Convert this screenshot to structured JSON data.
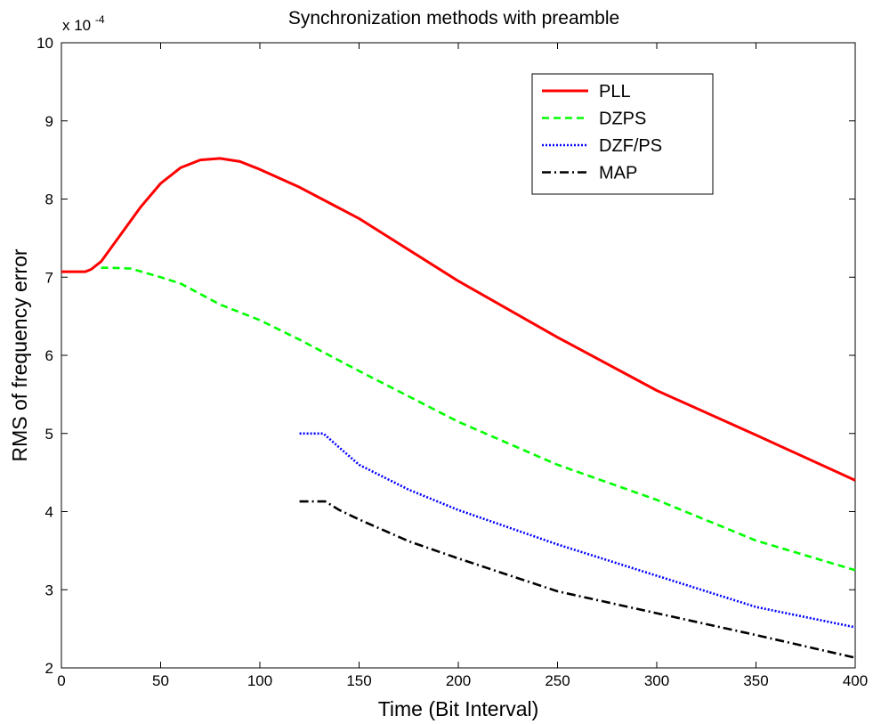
{
  "chart_data": {
    "type": "line",
    "title": "Synchronization methods with preamble",
    "xlabel": "Time (Bit Interval)",
    "ylabel": "RMS of frequency error",
    "y_multiplier_base": "x 10",
    "y_multiplier_exp": "-4",
    "xlim": [
      0,
      400
    ],
    "ylim": [
      2,
      10
    ],
    "xticks": [
      "0",
      "50",
      "100",
      "150",
      "200",
      "250",
      "300",
      "350",
      "400"
    ],
    "yticks": [
      "2",
      "3",
      "4",
      "5",
      "6",
      "7",
      "8",
      "9",
      "10"
    ],
    "grid": false,
    "legend_position": "top-right",
    "series": [
      {
        "name": "PLL",
        "color": "#ff0000",
        "style": "solid",
        "x": [
          0,
          12,
          15,
          20,
          30,
          40,
          50,
          60,
          70,
          80,
          90,
          100,
          120,
          150,
          200,
          250,
          300,
          350,
          400
        ],
        "y": [
          7.07,
          7.07,
          7.1,
          7.2,
          7.55,
          7.9,
          8.2,
          8.4,
          8.5,
          8.52,
          8.48,
          8.38,
          8.15,
          7.75,
          6.95,
          6.23,
          5.55,
          4.98,
          4.4
        ]
      },
      {
        "name": "DZPS",
        "color": "#00ff00",
        "style": "dashed",
        "x": [
          20,
          25,
          35,
          50,
          60,
          80,
          100,
          120,
          150,
          200,
          250,
          300,
          350,
          400
        ],
        "y": [
          7.12,
          7.12,
          7.11,
          7.0,
          6.92,
          6.65,
          6.45,
          6.2,
          5.8,
          5.15,
          4.6,
          4.15,
          3.63,
          3.25
        ]
      },
      {
        "name": "DZF/PS",
        "color": "#0000ff",
        "style": "dotted",
        "x": [
          120,
          132,
          140,
          150,
          175,
          200,
          250,
          300,
          350,
          400
        ],
        "y": [
          5.0,
          5.0,
          4.82,
          4.6,
          4.28,
          4.02,
          3.58,
          3.18,
          2.78,
          2.52
        ]
      },
      {
        "name": "MAP",
        "color": "#000000",
        "style": "dashdot",
        "x": [
          120,
          133,
          140,
          150,
          175,
          200,
          250,
          300,
          350,
          400
        ],
        "y": [
          4.13,
          4.13,
          4.02,
          3.9,
          3.62,
          3.4,
          2.98,
          2.7,
          2.42,
          2.13
        ]
      }
    ]
  }
}
